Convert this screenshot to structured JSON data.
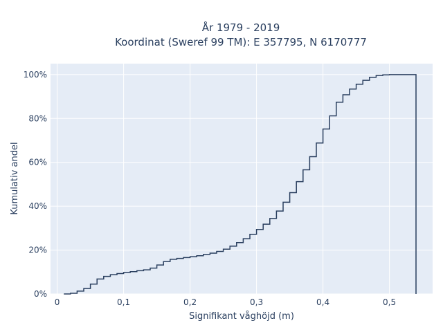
{
  "chart_data": {
    "type": "line",
    "title_lines": [
      "År 1979 - 2019",
      "Koordinat (Sweref 99 TM): E 357795, N 6170777"
    ],
    "xlabel": "Signifikant våghöjd (m)",
    "ylabel": "Kumulativ andel",
    "xlim": [
      -0.01,
      0.565
    ],
    "ylim": [
      0,
      1.05
    ],
    "xticks": [
      0,
      0.1,
      0.2,
      0.3,
      0.4,
      0.5
    ],
    "xtick_labels": [
      "0",
      "0,1",
      "0,2",
      "0,3",
      "0,4",
      "0,5"
    ],
    "yticks": [
      0,
      0.2,
      0.4,
      0.6,
      0.8,
      1.0
    ],
    "ytick_labels": [
      "0%",
      "20%",
      "40%",
      "60%",
      "80%",
      "100%"
    ],
    "grid": true,
    "line_shape": "step",
    "colors": {
      "plot_bg": "#e5ecf6",
      "grid": "#ffffff",
      "line": "#2a3f5f",
      "text": "#2a3f5f"
    },
    "series": [
      {
        "x": [
          0.01,
          0.02,
          0.03,
          0.04,
          0.05,
          0.06,
          0.07,
          0.08,
          0.09,
          0.1,
          0.11,
          0.12,
          0.13,
          0.14,
          0.15,
          0.16,
          0.17,
          0.18,
          0.19,
          0.2,
          0.21,
          0.22,
          0.23,
          0.24,
          0.25,
          0.26,
          0.27,
          0.28,
          0.29,
          0.3,
          0.31,
          0.32,
          0.33,
          0.34,
          0.35,
          0.36,
          0.37,
          0.38,
          0.39,
          0.4,
          0.41,
          0.42,
          0.43,
          0.44,
          0.45,
          0.46,
          0.47,
          0.48,
          0.49,
          0.5,
          0.51,
          0.52,
          0.54
        ],
        "y": [
          0.0,
          0.003,
          0.013,
          0.025,
          0.045,
          0.068,
          0.08,
          0.088,
          0.093,
          0.098,
          0.102,
          0.106,
          0.11,
          0.118,
          0.132,
          0.148,
          0.158,
          0.162,
          0.166,
          0.17,
          0.174,
          0.18,
          0.186,
          0.194,
          0.204,
          0.218,
          0.234,
          0.252,
          0.272,
          0.294,
          0.318,
          0.344,
          0.378,
          0.418,
          0.462,
          0.512,
          0.566,
          0.626,
          0.688,
          0.752,
          0.812,
          0.874,
          0.908,
          0.934,
          0.956,
          0.974,
          0.988,
          0.996,
          0.999,
          1.0,
          1.0,
          1.0,
          0.0
        ]
      }
    ]
  }
}
